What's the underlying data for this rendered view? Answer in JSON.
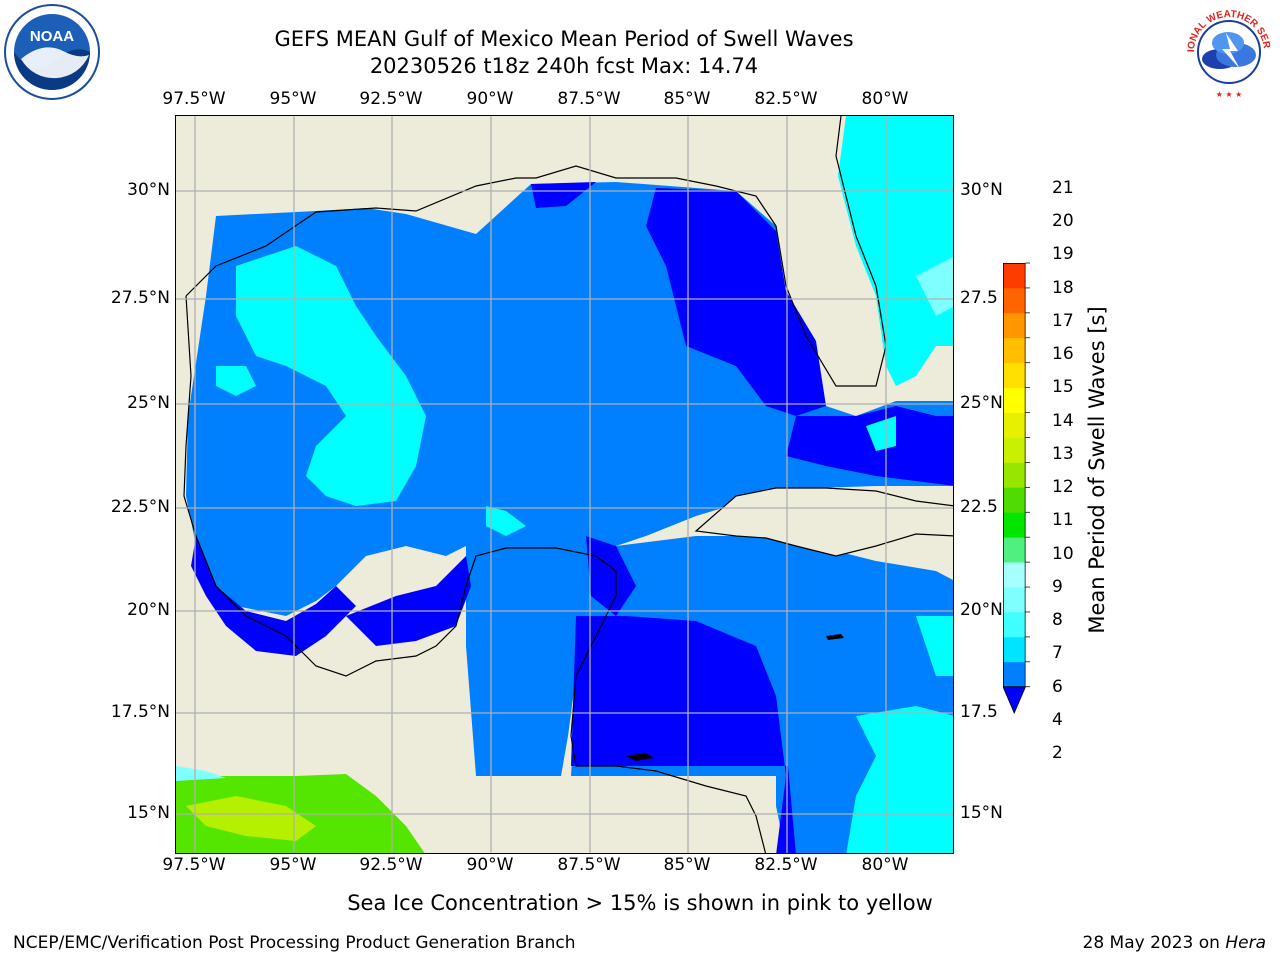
{
  "title": {
    "line1": "GEFS MEAN Gulf of Mexico Mean Period of Swell Waves",
    "line2": "20230526 t18z 240h fcst   Max: 14.74"
  },
  "axes": {
    "lon_labels": [
      "97.5°W",
      "95°W",
      "92.5°W",
      "90°W",
      "87.5°W",
      "85°W",
      "82.5°W",
      "80°W"
    ],
    "lat_labels_left": [
      "30°N",
      "27.5°N",
      "25°N",
      "22.5°N",
      "20°N",
      "17.5°N",
      "15°N"
    ],
    "lat_labels_right": [
      "30°N",
      "27.5",
      "25°N",
      "22.5",
      "20°N",
      "17.5",
      "15°N"
    ]
  },
  "colorbar": {
    "label": "Mean Period of Swell Waves [s]",
    "ticks": [
      "2",
      "4",
      "6",
      "7",
      "8",
      "9",
      "10",
      "11",
      "12",
      "13",
      "14",
      "15",
      "16",
      "17",
      "18",
      "19",
      "20",
      "21"
    ],
    "colors": [
      "#0080ff",
      "#00e5ff",
      "#40ffff",
      "#80ffff",
      "#a8ffff",
      "#50f080",
      "#00e600",
      "#50dc00",
      "#96e600",
      "#c8f000",
      "#e6f000",
      "#ffff00",
      "#ffe000",
      "#ffbe00",
      "#ff9600",
      "#ff6400",
      "#ff3c00",
      "#ff0000"
    ],
    "under_color": "#0000ff"
  },
  "map_colors": {
    "land": "#edebda",
    "deep_blue": "#0000ff",
    "blue": "#0080ff",
    "cyan": "#00ffff",
    "light_cyan": "#7fffff",
    "green": "#55e600",
    "yellow_green": "#b4f000",
    "grid": "#b0b0b0"
  },
  "footnote": "Sea Ice Concentration > 15% is shown in pink to yellow",
  "footer": {
    "left": "NCEP/EMC/Verification Post Processing Product Generation Branch",
    "date": "28 May 2023 on ",
    "machine": "Hera"
  },
  "logos": {
    "noaa": "NOAA",
    "nws": "NATIONAL WEATHER SERVICE"
  }
}
